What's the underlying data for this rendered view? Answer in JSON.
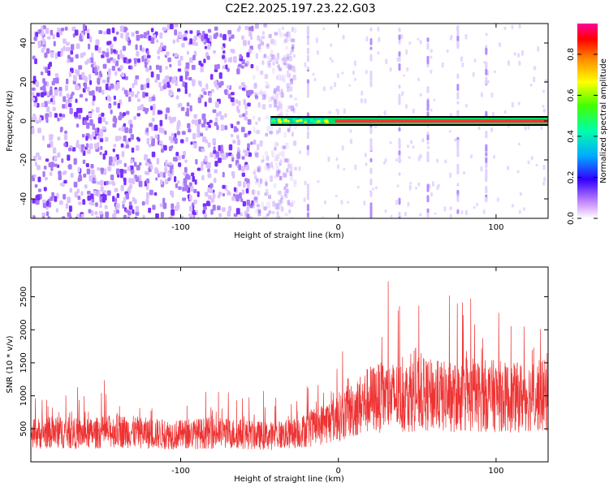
{
  "title": "C2E2.2025.197.23.22.G03",
  "chart_data": [
    {
      "type": "heatmap",
      "xlabel": "Height of straight line (km)",
      "ylabel": "Frequency (Hz)",
      "xlim": [
        -195,
        133
      ],
      "ylim": [
        -50,
        50
      ],
      "xticks": [
        -100,
        0,
        100
      ],
      "yticks": [
        -40,
        -20,
        0,
        20,
        40
      ],
      "colorbar": {
        "label": "Normalized spectral amplitude",
        "range": [
          0,
          0.95
        ],
        "ticks": [
          0.0,
          0.2,
          0.4,
          0.6,
          0.8
        ],
        "colors": [
          "#ffffff",
          "#9933ff",
          "#0000ff",
          "#00ffff",
          "#00ff00",
          "#ffff00",
          "#ff8800",
          "#ff0000",
          "#ff00aa"
        ]
      },
      "features": {
        "noise_region_km": [
          -195,
          -40
        ],
        "signal_line_start_km": -43,
        "signal_line_freq_hz": 0,
        "vertical_streaks_km": [
          -20,
          20,
          38,
          56,
          75,
          93
        ]
      }
    },
    {
      "type": "line",
      "xlabel": "Height of straight line (km)",
      "ylabel": "SNR (10 * v/v)",
      "xlim": [
        -195,
        133
      ],
      "ylim": [
        0,
        2950
      ],
      "xticks": [
        -100,
        0,
        100
      ],
      "yticks": [
        500,
        1000,
        1500,
        2000,
        2500
      ],
      "series": [
        {
          "color": "#ee3333",
          "x": [
            -195,
            -180,
            -160,
            -140,
            -120,
            -100,
            -80,
            -60,
            -45,
            -30,
            -15,
            0,
            10,
            15,
            20,
            30,
            40,
            50,
            60,
            70,
            80,
            90,
            100,
            110,
            120,
            133
          ],
          "y": [
            420,
            450,
            420,
            470,
            430,
            410,
            440,
            420,
            390,
            420,
            520,
            680,
            800,
            880,
            950,
            980,
            980,
            1030,
            1000,
            980,
            960,
            1000,
            1000,
            960,
            1000,
            1000
          ]
        }
      ]
    }
  ]
}
